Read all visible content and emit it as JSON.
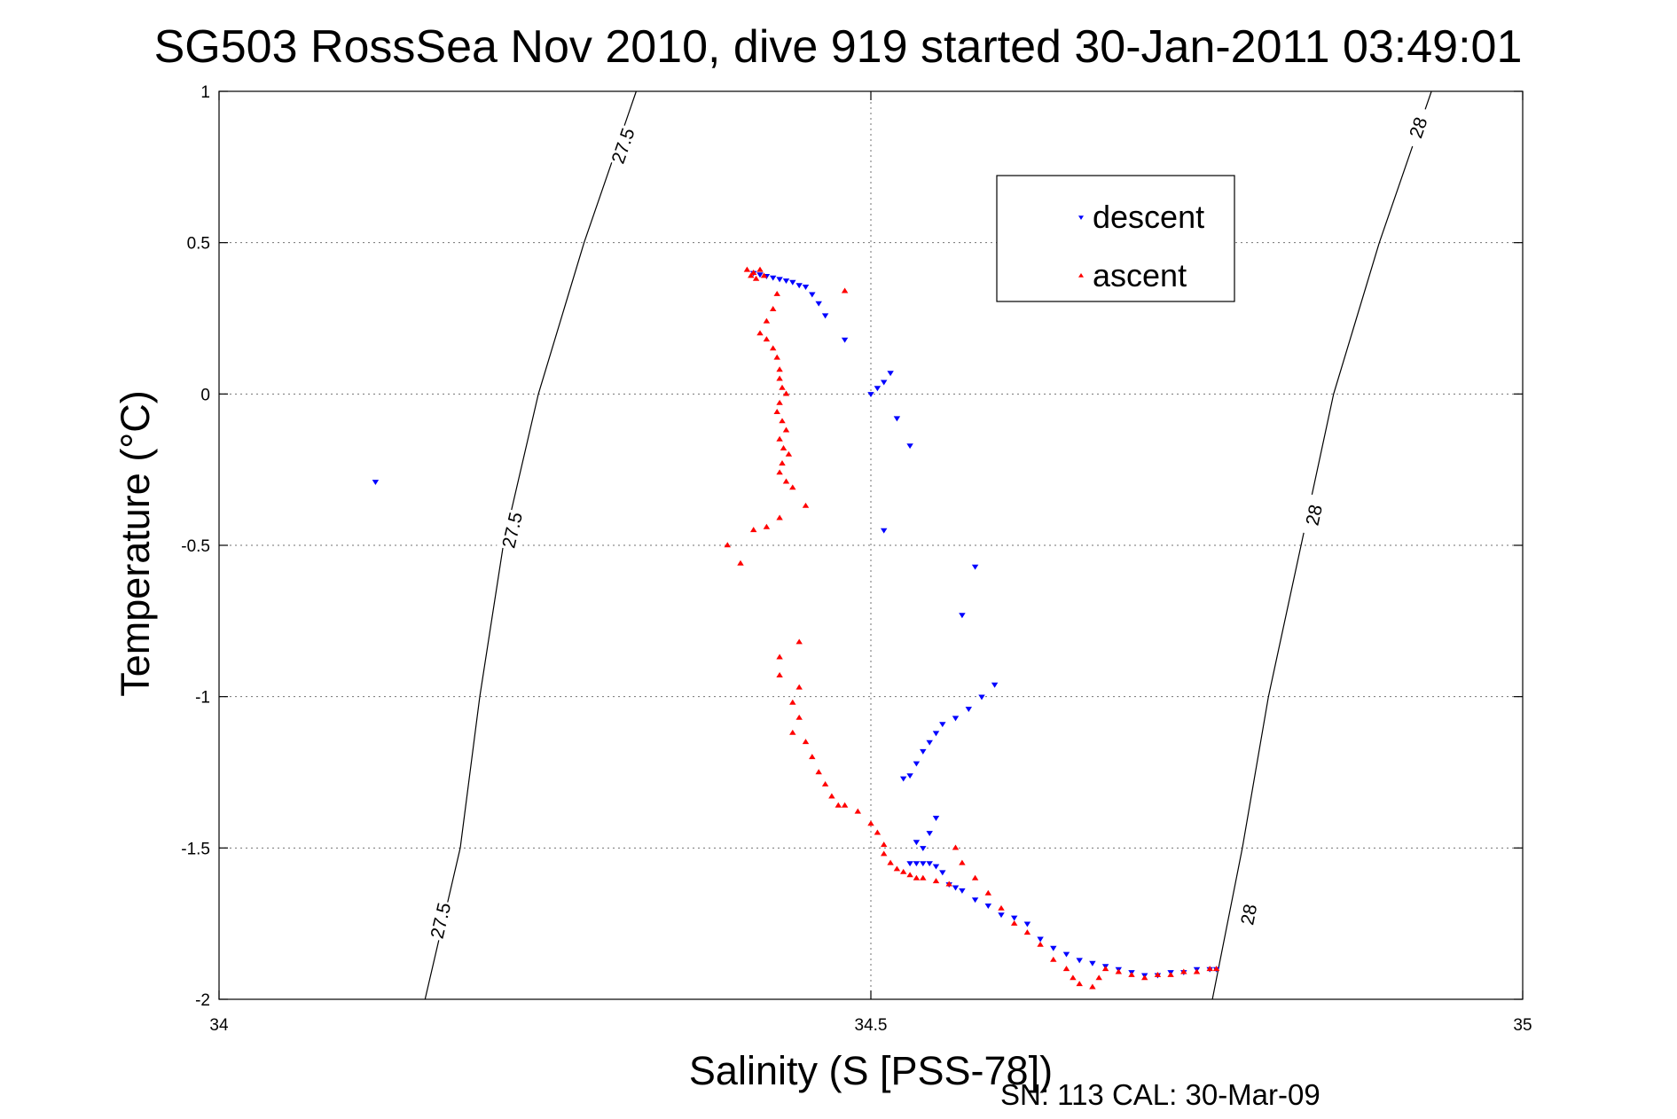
{
  "title": "SG503 RossSea Nov 2010, dive 919 started 30-Jan-2011 03:49:01",
  "footer": "SN: 113  CAL: 30-Mar-09",
  "chart_data": {
    "type": "scatter",
    "title": "SG503 RossSea Nov 2010, dive 919 started 30-Jan-2011 03:49:01",
    "xlabel": "Salinity (S [PSS-78])",
    "ylabel": "Temperature (°C)",
    "xlim": [
      34,
      35
    ],
    "ylim": [
      -2,
      1
    ],
    "xticks": [
      34,
      34.5,
      35
    ],
    "xtick_labels": [
      "34",
      "34.5",
      "35"
    ],
    "yticks": [
      1,
      0.5,
      0,
      -0.5,
      -1,
      -1.5,
      -2
    ],
    "ytick_labels": [
      "1",
      "0.5",
      "0",
      "-0.5",
      "-1",
      "-1.5",
      "-2"
    ],
    "grid": true,
    "legend_position": "top-right",
    "density_contours": [
      {
        "label": "27.5",
        "points": [
          [
            34.32,
            1.0
          ],
          [
            34.28,
            0.5
          ],
          [
            34.245,
            0.0
          ],
          [
            34.218,
            -0.5
          ],
          [
            34.2,
            -1.0
          ],
          [
            34.185,
            -1.5
          ],
          [
            34.158,
            -2.0
          ]
        ],
        "label_positions": [
          [
            34.31,
            0.82
          ],
          [
            34.225,
            -0.45
          ],
          [
            34.17,
            -1.74
          ]
        ]
      },
      {
        "label": "28",
        "points": [
          [
            34.93,
            1.0
          ],
          [
            34.89,
            0.5
          ],
          [
            34.855,
            0.0
          ],
          [
            34.83,
            -0.5
          ],
          [
            34.805,
            -1.0
          ],
          [
            34.785,
            -1.5
          ],
          [
            34.762,
            -2.0
          ]
        ],
        "label_positions": [
          [
            34.92,
            0.88
          ],
          [
            34.84,
            -0.4
          ],
          [
            34.79,
            -1.72
          ]
        ]
      }
    ],
    "series": [
      {
        "name": "descent",
        "color": "#0000ff",
        "marker": "triangle-down",
        "points": [
          [
            34.12,
            -0.29
          ],
          [
            34.41,
            0.4
          ],
          [
            34.415,
            0.395
          ],
          [
            34.42,
            0.39
          ],
          [
            34.425,
            0.385
          ],
          [
            34.43,
            0.38
          ],
          [
            34.435,
            0.375
          ],
          [
            34.44,
            0.37
          ],
          [
            34.445,
            0.36
          ],
          [
            34.45,
            0.355
          ],
          [
            34.455,
            0.33
          ],
          [
            34.46,
            0.3
          ],
          [
            34.465,
            0.26
          ],
          [
            34.48,
            0.18
          ],
          [
            34.5,
            0.0
          ],
          [
            34.505,
            0.02
          ],
          [
            34.51,
            0.04
          ],
          [
            34.515,
            0.07
          ],
          [
            34.52,
            -0.08
          ],
          [
            34.53,
            -0.17
          ],
          [
            34.51,
            -0.45
          ],
          [
            34.58,
            -0.57
          ],
          [
            34.57,
            -0.73
          ],
          [
            34.595,
            -0.96
          ],
          [
            34.585,
            -1.0
          ],
          [
            34.575,
            -1.04
          ],
          [
            34.565,
            -1.07
          ],
          [
            34.555,
            -1.09
          ],
          [
            34.55,
            -1.12
          ],
          [
            34.545,
            -1.15
          ],
          [
            34.54,
            -1.18
          ],
          [
            34.535,
            -1.22
          ],
          [
            34.53,
            -1.26
          ],
          [
            34.525,
            -1.27
          ],
          [
            34.55,
            -1.4
          ],
          [
            34.545,
            -1.45
          ],
          [
            34.535,
            -1.48
          ],
          [
            34.54,
            -1.5
          ],
          [
            34.53,
            -1.55
          ],
          [
            34.535,
            -1.55
          ],
          [
            34.54,
            -1.55
          ],
          [
            34.545,
            -1.55
          ],
          [
            34.55,
            -1.56
          ],
          [
            34.555,
            -1.58
          ],
          [
            34.56,
            -1.62
          ],
          [
            34.565,
            -1.63
          ],
          [
            34.57,
            -1.64
          ],
          [
            34.58,
            -1.67
          ],
          [
            34.59,
            -1.69
          ],
          [
            34.6,
            -1.72
          ],
          [
            34.61,
            -1.73
          ],
          [
            34.62,
            -1.75
          ],
          [
            34.63,
            -1.8
          ],
          [
            34.64,
            -1.83
          ],
          [
            34.65,
            -1.85
          ],
          [
            34.66,
            -1.87
          ],
          [
            34.67,
            -1.88
          ],
          [
            34.68,
            -1.89
          ],
          [
            34.69,
            -1.9
          ],
          [
            34.7,
            -1.91
          ],
          [
            34.71,
            -1.92
          ],
          [
            34.72,
            -1.92
          ],
          [
            34.73,
            -1.91
          ],
          [
            34.74,
            -1.91
          ],
          [
            34.75,
            -1.9
          ],
          [
            34.76,
            -1.9
          ],
          [
            34.765,
            -1.9
          ]
        ]
      },
      {
        "name": "ascent",
        "color": "#ff0000",
        "marker": "triangle-up",
        "points": [
          [
            34.405,
            0.41
          ],
          [
            34.408,
            0.39
          ],
          [
            34.41,
            0.4
          ],
          [
            34.412,
            0.38
          ],
          [
            34.415,
            0.41
          ],
          [
            34.418,
            0.39
          ],
          [
            34.48,
            0.34
          ],
          [
            34.428,
            0.33
          ],
          [
            34.425,
            0.28
          ],
          [
            34.42,
            0.24
          ],
          [
            34.415,
            0.2
          ],
          [
            34.42,
            0.18
          ],
          [
            34.425,
            0.15
          ],
          [
            34.428,
            0.12
          ],
          [
            34.43,
            0.08
          ],
          [
            34.43,
            0.05
          ],
          [
            34.432,
            0.02
          ],
          [
            34.435,
            0.0
          ],
          [
            34.43,
            -0.03
          ],
          [
            34.428,
            -0.06
          ],
          [
            34.432,
            -0.09
          ],
          [
            34.435,
            -0.12
          ],
          [
            34.43,
            -0.15
          ],
          [
            34.433,
            -0.18
          ],
          [
            34.437,
            -0.2
          ],
          [
            34.432,
            -0.23
          ],
          [
            34.43,
            -0.26
          ],
          [
            34.435,
            -0.29
          ],
          [
            34.44,
            -0.31
          ],
          [
            34.45,
            -0.37
          ],
          [
            34.43,
            -0.41
          ],
          [
            34.42,
            -0.44
          ],
          [
            34.41,
            -0.45
          ],
          [
            34.39,
            -0.5
          ],
          [
            34.4,
            -0.56
          ],
          [
            34.445,
            -0.82
          ],
          [
            34.43,
            -0.87
          ],
          [
            34.43,
            -0.93
          ],
          [
            34.445,
            -0.97
          ],
          [
            34.44,
            -1.02
          ],
          [
            34.445,
            -1.07
          ],
          [
            34.44,
            -1.12
          ],
          [
            34.45,
            -1.15
          ],
          [
            34.455,
            -1.2
          ],
          [
            34.46,
            -1.25
          ],
          [
            34.465,
            -1.29
          ],
          [
            34.47,
            -1.33
          ],
          [
            34.475,
            -1.36
          ],
          [
            34.48,
            -1.36
          ],
          [
            34.49,
            -1.38
          ],
          [
            34.5,
            -1.42
          ],
          [
            34.505,
            -1.45
          ],
          [
            34.51,
            -1.49
          ],
          [
            34.51,
            -1.52
          ],
          [
            34.515,
            -1.55
          ],
          [
            34.52,
            -1.57
          ],
          [
            34.525,
            -1.58
          ],
          [
            34.53,
            -1.59
          ],
          [
            34.535,
            -1.6
          ],
          [
            34.54,
            -1.6
          ],
          [
            34.55,
            -1.61
          ],
          [
            34.56,
            -1.62
          ],
          [
            34.565,
            -1.5
          ],
          [
            34.57,
            -1.55
          ],
          [
            34.58,
            -1.6
          ],
          [
            34.59,
            -1.65
          ],
          [
            34.6,
            -1.7
          ],
          [
            34.61,
            -1.75
          ],
          [
            34.62,
            -1.78
          ],
          [
            34.63,
            -1.82
          ],
          [
            34.64,
            -1.87
          ],
          [
            34.65,
            -1.9
          ],
          [
            34.655,
            -1.93
          ],
          [
            34.66,
            -1.95
          ],
          [
            34.67,
            -1.96
          ],
          [
            34.675,
            -1.93
          ],
          [
            34.68,
            -1.9
          ],
          [
            34.69,
            -1.91
          ],
          [
            34.7,
            -1.92
          ],
          [
            34.71,
            -1.93
          ],
          [
            34.72,
            -1.92
          ],
          [
            34.73,
            -1.92
          ],
          [
            34.74,
            -1.91
          ],
          [
            34.75,
            -1.91
          ],
          [
            34.76,
            -1.9
          ],
          [
            34.765,
            -1.9
          ]
        ]
      }
    ]
  }
}
